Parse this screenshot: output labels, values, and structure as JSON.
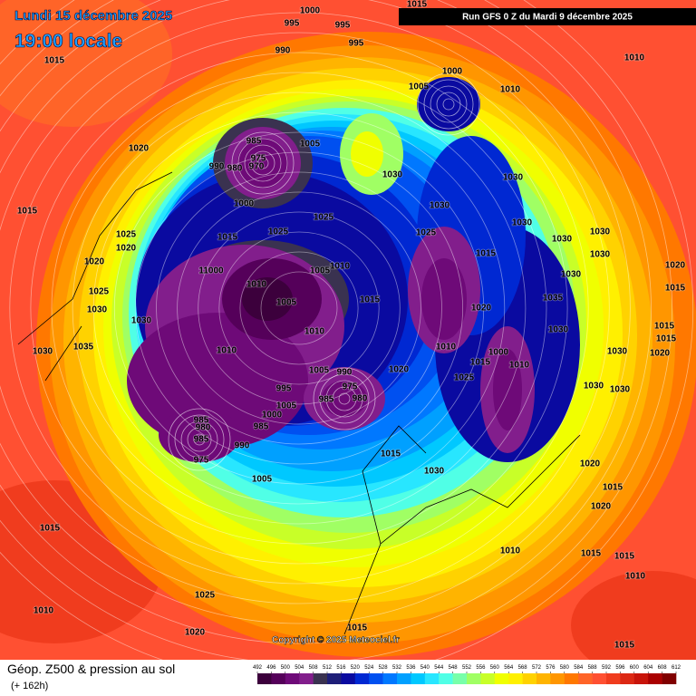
{
  "header": {
    "date": "Lundi 15 décembre 2025",
    "time": "19:00 locale",
    "run": "Run GFS 0 Z du Mardi 9 décembre 2025"
  },
  "footer": {
    "title": "Géop. Z500 & pression au sol",
    "lead": "(+ 162h)",
    "copyright": "Copyright © 2025 Meteociel.fr"
  },
  "colorbar": {
    "ticks": [
      492,
      496,
      500,
      504,
      508,
      512,
      516,
      520,
      524,
      528,
      532,
      536,
      540,
      544,
      548,
      552,
      556,
      560,
      564,
      568,
      572,
      576,
      580,
      584,
      588,
      592,
      596,
      600,
      604,
      608,
      612
    ],
    "colors": [
      "#3c003c",
      "#55005a",
      "#6e0a78",
      "#821e8c",
      "#3a3250",
      "#1e1e78",
      "#0a0aa0",
      "#0028d2",
      "#0050f0",
      "#0078ff",
      "#00a0ff",
      "#00c8ff",
      "#28e6ff",
      "#50ffe6",
      "#78ffaa",
      "#a0ff64",
      "#c8ff28",
      "#f0ff00",
      "#fff000",
      "#ffd200",
      "#ffb400",
      "#ff9600",
      "#ff7800",
      "#ff6428",
      "#ff5032",
      "#f03c1e",
      "#dc2814",
      "#c8140a",
      "#aa0000",
      "#800000"
    ]
  },
  "isobar_labels": [
    "1015",
    "1015",
    "1000",
    "995",
    "995",
    "995",
    "990",
    "1015",
    "1005",
    "1000",
    "1010",
    "1010",
    "1020",
    "985",
    "975",
    "990",
    "980",
    "970",
    "1005",
    "1030",
    "1030",
    "1015",
    "1000",
    "1025",
    "1030",
    "1030",
    "1025",
    "1020",
    "1015",
    "1025",
    "1025",
    "1030",
    "1030",
    "1030",
    "1020",
    "11000",
    "1005",
    "1010",
    "1015",
    "1030",
    "1020",
    "1015",
    "1025",
    "1010",
    "1005",
    "1015",
    "1020",
    "1035",
    "1030",
    "1030",
    "1010",
    "1030",
    "1015",
    "1015",
    "1035",
    "1030",
    "1010",
    "1010",
    "1000",
    "1015",
    "1010",
    "1030",
    "1020",
    "1005",
    "990",
    "975",
    "980",
    "1020",
    "1025",
    "995",
    "985",
    "1030",
    "1030",
    "1000",
    "1005",
    "985",
    "985",
    "980",
    "985",
    "975",
    "990",
    "1015",
    "1030",
    "1020",
    "1005",
    "1015",
    "1020",
    "1015",
    "1010",
    "1015",
    "1015",
    "1010",
    "1025",
    "1010",
    "1020",
    "1015",
    "1015"
  ]
}
